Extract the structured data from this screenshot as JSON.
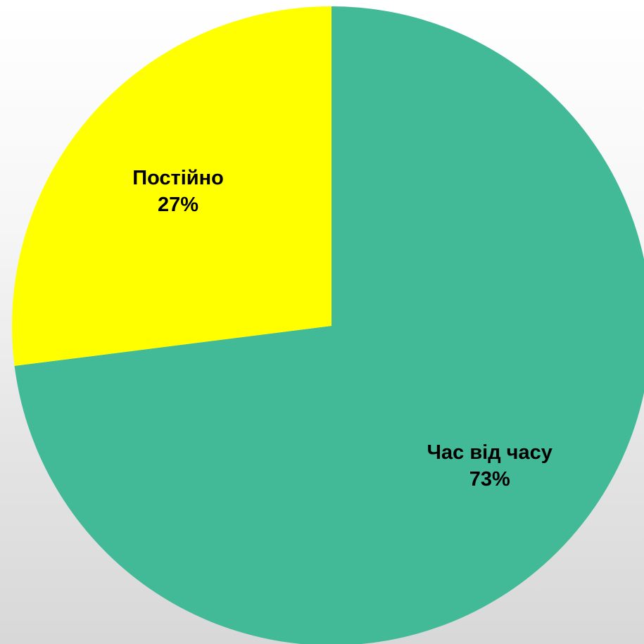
{
  "chart_data": {
    "type": "pie",
    "slices": [
      {
        "label": "Час від часу",
        "value": 73,
        "value_text": "73%",
        "color": "#43BA97"
      },
      {
        "label": "Постійно",
        "value": 27,
        "value_text": "27%",
        "color": "#FFFF00"
      }
    ],
    "start": "top, clockwise",
    "legend": "none"
  }
}
